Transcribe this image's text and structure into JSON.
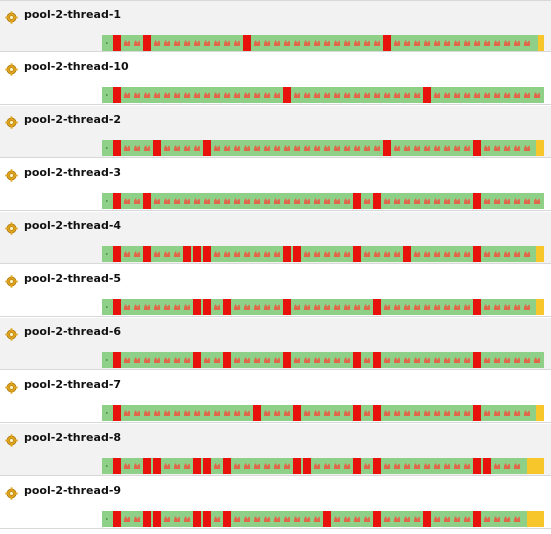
{
  "colors": {
    "running": "#8fd089",
    "blocked": "#e8120d",
    "waiting": "#f7c62b",
    "flame": "#e0674a",
    "row_alt": "#f2f2f2"
  },
  "icons": {
    "thread": "gear-icon",
    "state": "flame-icon"
  },
  "threads": [
    {
      "name": "pool-2-thread-1",
      "blocked_slots": [
        1,
        4,
        14,
        28
      ],
      "waiting_tail": 0.6
    },
    {
      "name": "pool-2-thread-10",
      "blocked_slots": [
        1,
        18,
        32
      ],
      "waiting_tail": 0
    },
    {
      "name": "pool-2-thread-2",
      "blocked_slots": [
        1,
        5,
        10,
        28,
        37
      ],
      "waiting_tail": 0.8
    },
    {
      "name": "pool-2-thread-3",
      "blocked_slots": [
        1,
        4,
        25,
        27,
        37
      ],
      "waiting_tail": 0
    },
    {
      "name": "pool-2-thread-4",
      "blocked_slots": [
        1,
        4,
        8,
        9,
        10,
        18,
        19,
        25,
        30,
        37
      ],
      "waiting_tail": 0.8
    },
    {
      "name": "pool-2-thread-5",
      "blocked_slots": [
        1,
        9,
        10,
        12,
        18,
        27,
        37
      ],
      "waiting_tail": 0.8
    },
    {
      "name": "pool-2-thread-6",
      "blocked_slots": [
        1,
        9,
        12,
        18,
        25,
        27,
        37
      ],
      "waiting_tail": 0
    },
    {
      "name": "pool-2-thread-7",
      "blocked_slots": [
        1,
        15,
        19,
        25,
        27,
        37
      ],
      "waiting_tail": 0.8
    },
    {
      "name": "pool-2-thread-8",
      "blocked_slots": [
        1,
        4,
        5,
        9,
        10,
        12,
        19,
        20,
        25,
        27,
        37,
        38
      ],
      "waiting_tail": 1.7
    },
    {
      "name": "pool-2-thread-9",
      "blocked_slots": [
        1,
        4,
        5,
        9,
        10,
        12,
        22,
        27,
        32,
        37
      ],
      "waiting_tail": 1.7
    }
  ]
}
